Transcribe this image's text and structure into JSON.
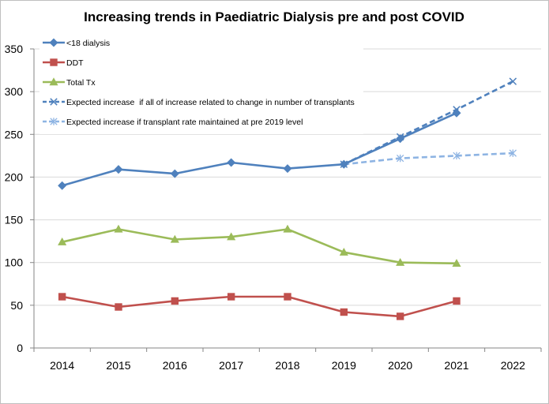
{
  "chart_data": {
    "type": "line",
    "title": "Increasing trends in Paediatric Dialysis pre and post COVID",
    "xlabel": "",
    "ylabel": "",
    "x": [
      "2014",
      "2015",
      "2016",
      "2017",
      "2018",
      "2019",
      "2020",
      "2021",
      "2022"
    ],
    "ylim": [
      0,
      350
    ],
    "yticks": [
      0,
      50,
      100,
      150,
      200,
      250,
      300,
      350
    ],
    "grid": true,
    "legend_position": "top-left",
    "series": [
      {
        "name": "<18 dialysis",
        "color": "#4f81bd",
        "marker": "diamond",
        "line_style": "solid",
        "values": [
          190,
          209,
          204,
          217,
          210,
          215,
          245,
          275,
          null
        ]
      },
      {
        "name": "DDT",
        "color": "#c0504d",
        "marker": "square",
        "line_style": "solid",
        "values": [
          60,
          48,
          55,
          60,
          60,
          42,
          37,
          55,
          null
        ]
      },
      {
        "name": "Total Tx",
        "color": "#9bbb59",
        "marker": "triangle",
        "line_style": "solid",
        "values": [
          124,
          139,
          127,
          130,
          139,
          112,
          100,
          99,
          null
        ]
      },
      {
        "name": "Expected increase  if all of increase related to change in number of transplants",
        "color": "#4f81bd",
        "marker": "x",
        "line_style": "dashed",
        "values": [
          null,
          null,
          null,
          null,
          null,
          215,
          247,
          279,
          312
        ]
      },
      {
        "name": "Expected increase if transplant rate maintained at pre 2019 level",
        "color": "#8eb4e3",
        "marker": "star",
        "line_style": "dashed",
        "values": [
          null,
          null,
          null,
          null,
          null,
          215,
          222,
          225,
          228
        ]
      }
    ]
  }
}
